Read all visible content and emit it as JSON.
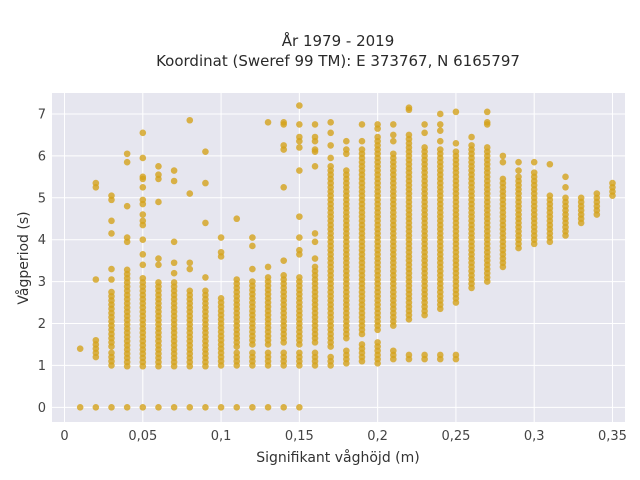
{
  "chart_data": {
    "type": "scatter",
    "title": "År 1979 - 2019",
    "subtitle": "Koordinat (Sweref 99 TM): E 373767, N 6165797",
    "xlabel": "Signifikant våghöjd (m)",
    "ylabel": "Vågperiod (s)",
    "xlim": [
      -0.008,
      0.358
    ],
    "ylim": [
      -0.35,
      7.5
    ],
    "x_ticks": [
      0,
      0.05,
      0.1,
      0.15,
      0.2,
      0.25,
      0.3,
      0.35
    ],
    "x_tick_labels": [
      "0",
      "0,05",
      "0,1",
      "0,15",
      "0,2",
      "0,25",
      "0,3",
      "0,35"
    ],
    "y_ticks": [
      0,
      1,
      2,
      3,
      4,
      5,
      6,
      7
    ],
    "y_tick_labels": [
      "0",
      "1",
      "2",
      "3",
      "4",
      "5",
      "6",
      "7"
    ],
    "grid": true,
    "marker_color": "#d4a21c",
    "plot_background": "#e6e6ef",
    "series": [
      {
        "values_note": "",
        "columns": [
          {
            "x": 0.01,
            "ranges": [
              [
                1.4,
                1.45
              ]
            ],
            "points": [
              0
            ]
          },
          {
            "x": 0.02,
            "ranges": [
              [
                1.2,
                1.65
              ]
            ],
            "points": [
              0,
              3.05,
              5.25,
              5.35
            ]
          },
          {
            "x": 0.03,
            "ranges": [
              [
                1.0,
                1.3
              ],
              [
                1.45,
                2.8
              ]
            ],
            "points": [
              0,
              3.05,
              3.3,
              4.15,
              4.45,
              4.95,
              5.05
            ]
          },
          {
            "x": 0.04,
            "ranges": [
              [
                0.98,
                3.35
              ]
            ],
            "points": [
              0,
              3.95,
              4.05,
              4.8,
              5.85,
              6.05
            ]
          },
          {
            "x": 0.05,
            "ranges": [
              [
                0.98,
                3.15
              ]
            ],
            "points": [
              0,
              3.4,
              3.65,
              4.0,
              4.35,
              4.45,
              4.6,
              4.85,
              4.95,
              5.25,
              5.45,
              5.5,
              5.95,
              6.55
            ]
          },
          {
            "x": 0.06,
            "ranges": [
              [
                0.98,
                3.0
              ]
            ],
            "points": [
              0,
              3.4,
              3.55,
              4.9,
              5.45,
              5.55,
              5.75
            ]
          },
          {
            "x": 0.07,
            "ranges": [
              [
                0.98,
                3.0
              ]
            ],
            "points": [
              0,
              3.2,
              3.45,
              3.95,
              5.4,
              5.65
            ]
          },
          {
            "x": 0.08,
            "ranges": [
              [
                0.98,
                2.85
              ]
            ],
            "points": [
              0,
              3.3,
              3.45,
              5.1,
              6.85
            ]
          },
          {
            "x": 0.09,
            "ranges": [
              [
                0.98,
                2.85
              ]
            ],
            "points": [
              0,
              3.1,
              5.35,
              6.1,
              4.4
            ]
          },
          {
            "x": 0.1,
            "ranges": [
              [
                1.0,
                2.6
              ]
            ],
            "points": [
              0,
              3.6,
              3.7,
              4.05
            ]
          },
          {
            "x": 0.11,
            "ranges": [
              [
                1.0,
                1.35
              ],
              [
                1.45,
                3.05
              ]
            ],
            "points": [
              0,
              4.5
            ]
          },
          {
            "x": 0.12,
            "ranges": [
              [
                1.0,
                1.35
              ],
              [
                1.5,
                3.05
              ]
            ],
            "points": [
              0,
              3.3,
              3.85,
              4.05
            ]
          },
          {
            "x": 0.13,
            "ranges": [
              [
                1.0,
                1.3
              ],
              [
                1.5,
                3.1
              ]
            ],
            "points": [
              0,
              3.35,
              6.8
            ]
          },
          {
            "x": 0.14,
            "ranges": [
              [
                1.0,
                1.3
              ],
              [
                1.55,
                3.2
              ]
            ],
            "points": [
              0,
              3.5,
              5.25,
              6.25,
              6.15,
              6.8,
              6.75
            ]
          },
          {
            "x": 0.15,
            "ranges": [
              [
                1.0,
                1.35
              ],
              [
                1.5,
                3.15
              ]
            ],
            "points": [
              0,
              3.65,
              3.75,
              4.05,
              4.55,
              5.65,
              6.2,
              6.35,
              6.45,
              6.75,
              7.2
            ]
          },
          {
            "x": 0.16,
            "ranges": [
              [
                1.0,
                1.35
              ],
              [
                1.55,
                3.4
              ]
            ],
            "points": [
              3.55,
              3.95,
              4.15,
              5.75,
              6.1,
              6.15,
              6.35,
              6.45,
              6.75
            ]
          },
          {
            "x": 0.17,
            "ranges": [
              [
                1.0,
                1.25
              ],
              [
                1.45,
                5.8
              ]
            ],
            "points": [
              5.95,
              6.25,
              6.55,
              6.8
            ]
          },
          {
            "x": 0.18,
            "ranges": [
              [
                1.05,
                1.4
              ],
              [
                1.65,
                5.7
              ]
            ],
            "points": [
              6.05,
              6.15,
              6.35
            ]
          },
          {
            "x": 0.19,
            "ranges": [
              [
                1.1,
                1.5
              ],
              [
                1.75,
                6.15
              ]
            ],
            "points": [
              6.35,
              6.75
            ]
          },
          {
            "x": 0.2,
            "ranges": [
              [
                1.05,
                1.55
              ],
              [
                1.85,
                6.5
              ]
            ],
            "points": [
              6.65,
              6.75
            ]
          },
          {
            "x": 0.21,
            "ranges": [
              [
                1.15,
                1.35
              ],
              [
                1.95,
                6.1
              ]
            ],
            "points": [
              6.35,
              6.5,
              6.75
            ]
          },
          {
            "x": 0.22,
            "ranges": [
              [
                1.15,
                1.25
              ],
              [
                2.1,
                6.5
              ]
            ],
            "points": [
              7.1,
              7.15
            ]
          },
          {
            "x": 0.23,
            "ranges": [
              [
                1.15,
                1.25
              ],
              [
                2.2,
                6.25
              ]
            ],
            "points": [
              6.55,
              6.75
            ]
          },
          {
            "x": 0.24,
            "ranges": [
              [
                1.15,
                1.25
              ],
              [
                2.35,
                6.15
              ]
            ],
            "points": [
              6.35,
              6.6,
              6.75,
              7.0
            ]
          },
          {
            "x": 0.25,
            "ranges": [
              [
                1.15,
                1.25
              ],
              [
                2.5,
                6.1
              ]
            ],
            "points": [
              6.3,
              7.05
            ]
          },
          {
            "x": 0.26,
            "ranges": [
              [
                2.85,
                6.25
              ]
            ],
            "points": [
              6.45
            ]
          },
          {
            "x": 0.27,
            "ranges": [
              [
                3.0,
                6.25
              ]
            ],
            "points": [
              6.75,
              6.8,
              7.05
            ]
          },
          {
            "x": 0.28,
            "ranges": [
              [
                3.35,
                5.5
              ]
            ],
            "points": [
              5.85,
              6.0
            ]
          },
          {
            "x": 0.29,
            "ranges": [
              [
                3.8,
                5.5
              ]
            ],
            "points": [
              5.65,
              5.85
            ]
          },
          {
            "x": 0.3,
            "ranges": [
              [
                3.9,
                5.65
              ]
            ],
            "points": [
              5.85
            ]
          },
          {
            "x": 0.31,
            "ranges": [
              [
                3.95,
                5.1
              ]
            ],
            "points": [
              5.8
            ]
          },
          {
            "x": 0.32,
            "ranges": [
              [
                4.1,
                5.05
              ]
            ],
            "points": [
              5.25,
              5.5
            ]
          },
          {
            "x": 0.33,
            "ranges": [
              [
                4.4,
                5.0
              ]
            ],
            "points": []
          },
          {
            "x": 0.34,
            "ranges": [
              [
                4.6,
                5.1
              ]
            ],
            "points": []
          },
          {
            "x": 0.35,
            "ranges": [
              [
                5.05,
                5.35
              ]
            ],
            "points": []
          }
        ]
      }
    ]
  }
}
